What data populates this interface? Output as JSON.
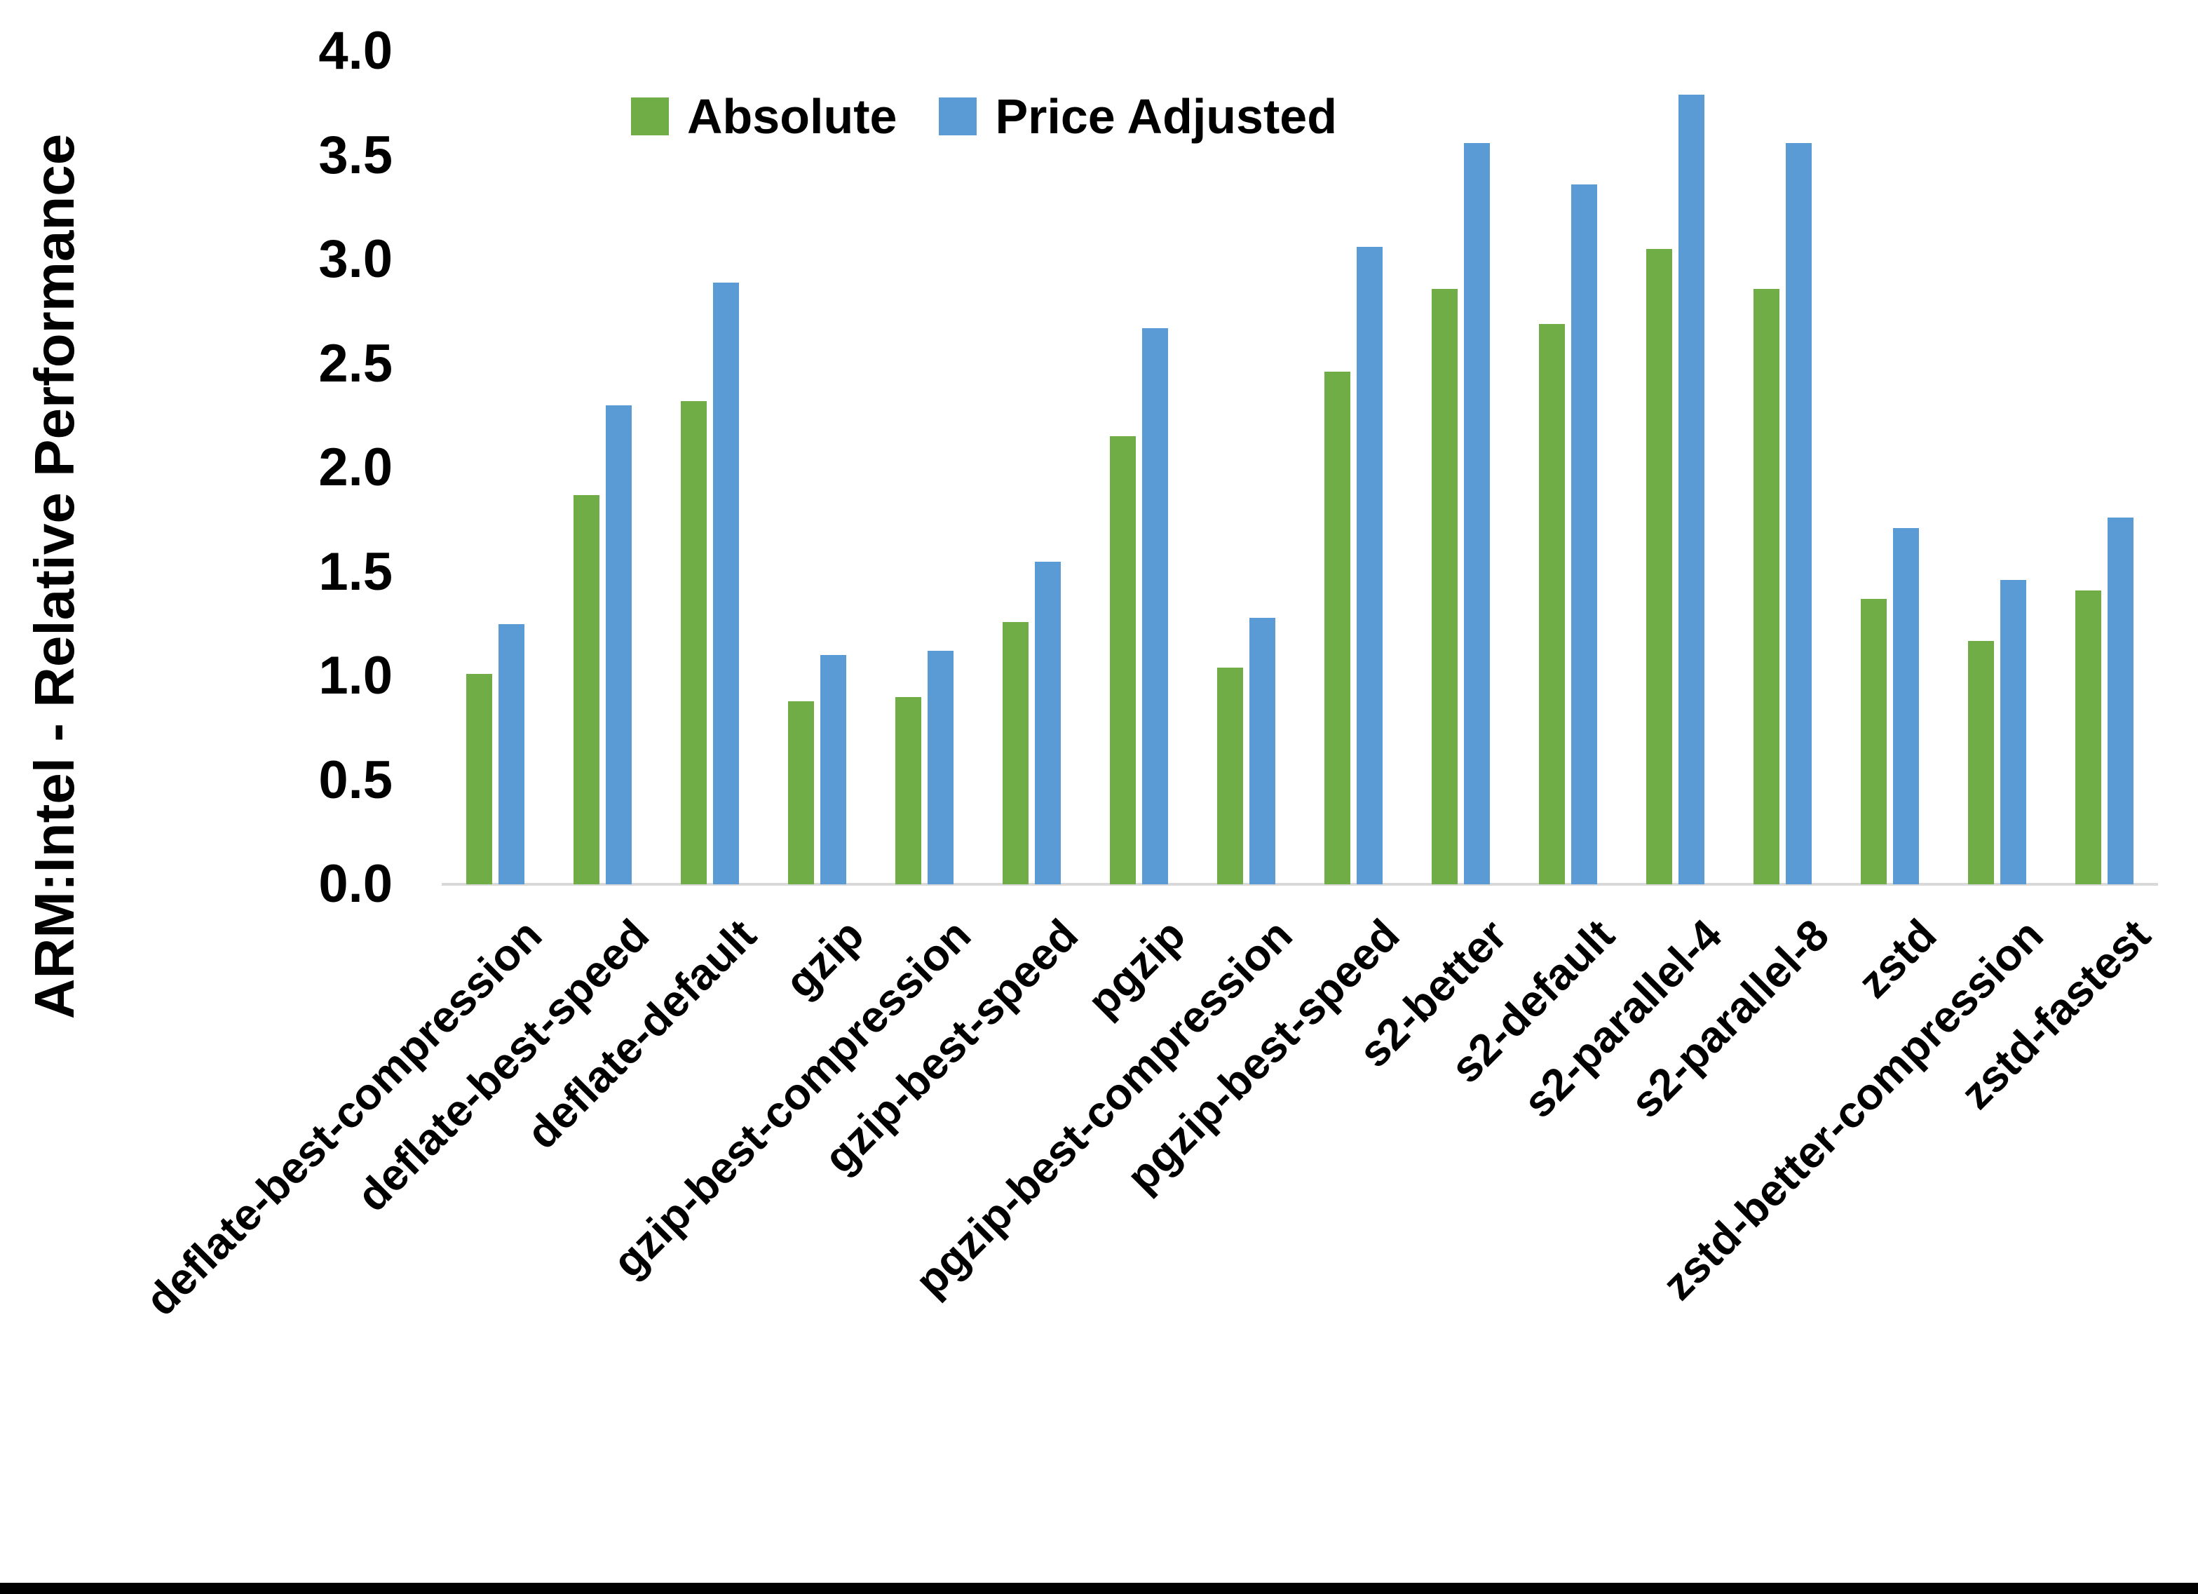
{
  "figure": {
    "y_axis_title": "ARM:Intel - Relative Performance",
    "colors": {
      "absolute_series": "#70AD47",
      "price_adjusted_series": "#5B9BD5",
      "axis_line": "#D9D9D9",
      "text": "#000000",
      "background": "#FFFFFF",
      "bottom_strip": "#000000"
    }
  },
  "legend": {
    "absolute_label": "Absolute",
    "price_adjusted_label": "Price Adjusted"
  },
  "chart_data": {
    "type": "bar",
    "title": "",
    "xlabel": "",
    "ylabel": "ARM:Intel - Relative Performance",
    "ylim": [
      0.0,
      4.0
    ],
    "ytick_step": 0.5,
    "ytick_labels": [
      "0.0",
      "0.5",
      "1.0",
      "1.5",
      "2.0",
      "2.5",
      "3.0",
      "3.5",
      "4.0"
    ],
    "grid": false,
    "legend_position": "top-center",
    "x_label_rotation_deg": 45,
    "categories": [
      "deflate-best-compression",
      "deflate-best-speed",
      "deflate-default",
      "gzip",
      "gzip-best-compression",
      "gzip-best-speed",
      "pgzip",
      "pgzip-best-compression",
      "pgzip-best-speed",
      "s2-better",
      "s2-default",
      "s2-parallel-4",
      "s2-parallel-8",
      "zstd",
      "zstd-better-compression",
      "zstd-fastest"
    ],
    "series": [
      {
        "name": "Absolute",
        "color": "#70AD47",
        "values": [
          1.01,
          1.87,
          2.32,
          0.88,
          0.9,
          1.26,
          2.15,
          1.04,
          2.46,
          2.86,
          2.69,
          3.05,
          2.86,
          1.37,
          1.17,
          1.41
        ]
      },
      {
        "name": "Price Adjusted",
        "color": "#5B9BD5",
        "values": [
          1.25,
          2.3,
          2.89,
          1.1,
          1.12,
          1.55,
          2.67,
          1.28,
          3.06,
          3.56,
          3.36,
          3.79,
          3.56,
          1.71,
          1.46,
          1.76
        ]
      }
    ]
  }
}
